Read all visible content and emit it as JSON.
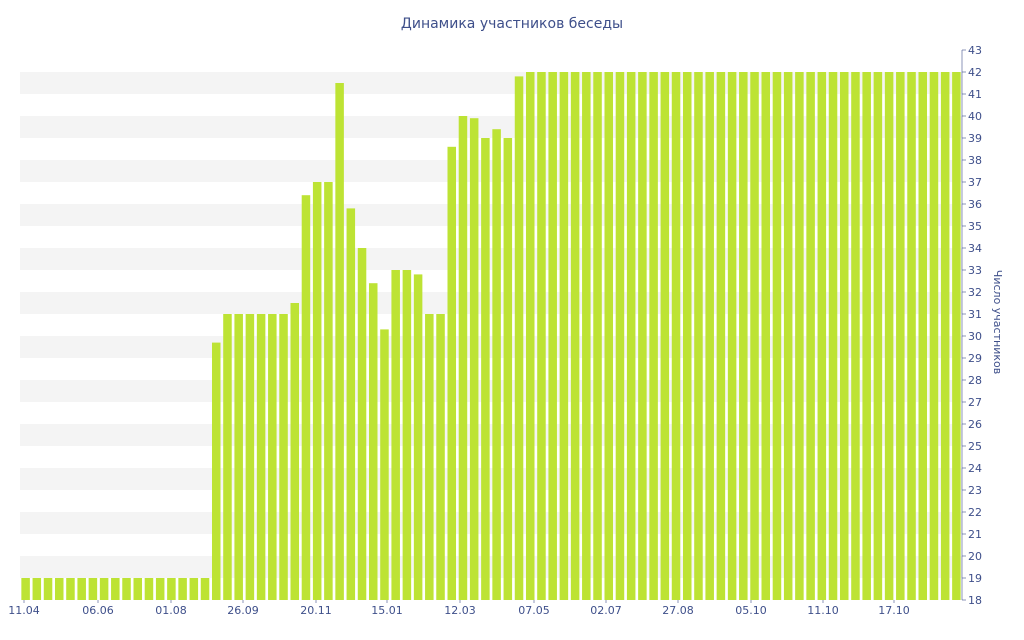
{
  "chart_data": {
    "type": "bar",
    "title": "Динамика участников беседы",
    "xlabel": "",
    "ylabel": "Число участников",
    "ylim": [
      18,
      43
    ],
    "y_ticks": [
      18,
      19,
      20,
      21,
      22,
      23,
      24,
      25,
      26,
      27,
      28,
      29,
      30,
      31,
      32,
      33,
      34,
      35,
      36,
      37,
      38,
      39,
      40,
      41,
      42,
      43
    ],
    "x_tick_labels": [
      "11.04",
      "06.06",
      "01.08",
      "26.09",
      "20.11",
      "15.01",
      "12.03",
      "07.05",
      "02.07",
      "27.08",
      "05.10",
      "11.10",
      "17.10"
    ],
    "grid": "horizontal bands",
    "bar_color": "#bde334",
    "band_color": "#f4f4f4",
    "text_color": "#3e4f8a",
    "series": [
      {
        "values": [
          19,
          19,
          19,
          19,
          19,
          19,
          19,
          19,
          19,
          19,
          19,
          19,
          19,
          19,
          19,
          19,
          19,
          29.7,
          31,
          31,
          31,
          31,
          31,
          31,
          31.5,
          36.4,
          37,
          37,
          41.5,
          35.8,
          34,
          32.4,
          30.3,
          33,
          33,
          32.8,
          31,
          31,
          38.6,
          40,
          39.9,
          39,
          39.4,
          39,
          41.8,
          42,
          42,
          42,
          42,
          42,
          42,
          42,
          42,
          42,
          42,
          42,
          42,
          42,
          42,
          42,
          42,
          42,
          42,
          42,
          42,
          42,
          42,
          42,
          42,
          42,
          42,
          42,
          42,
          42,
          42,
          42,
          42,
          42,
          42,
          42,
          42,
          42,
          42,
          42
        ]
      }
    ]
  }
}
